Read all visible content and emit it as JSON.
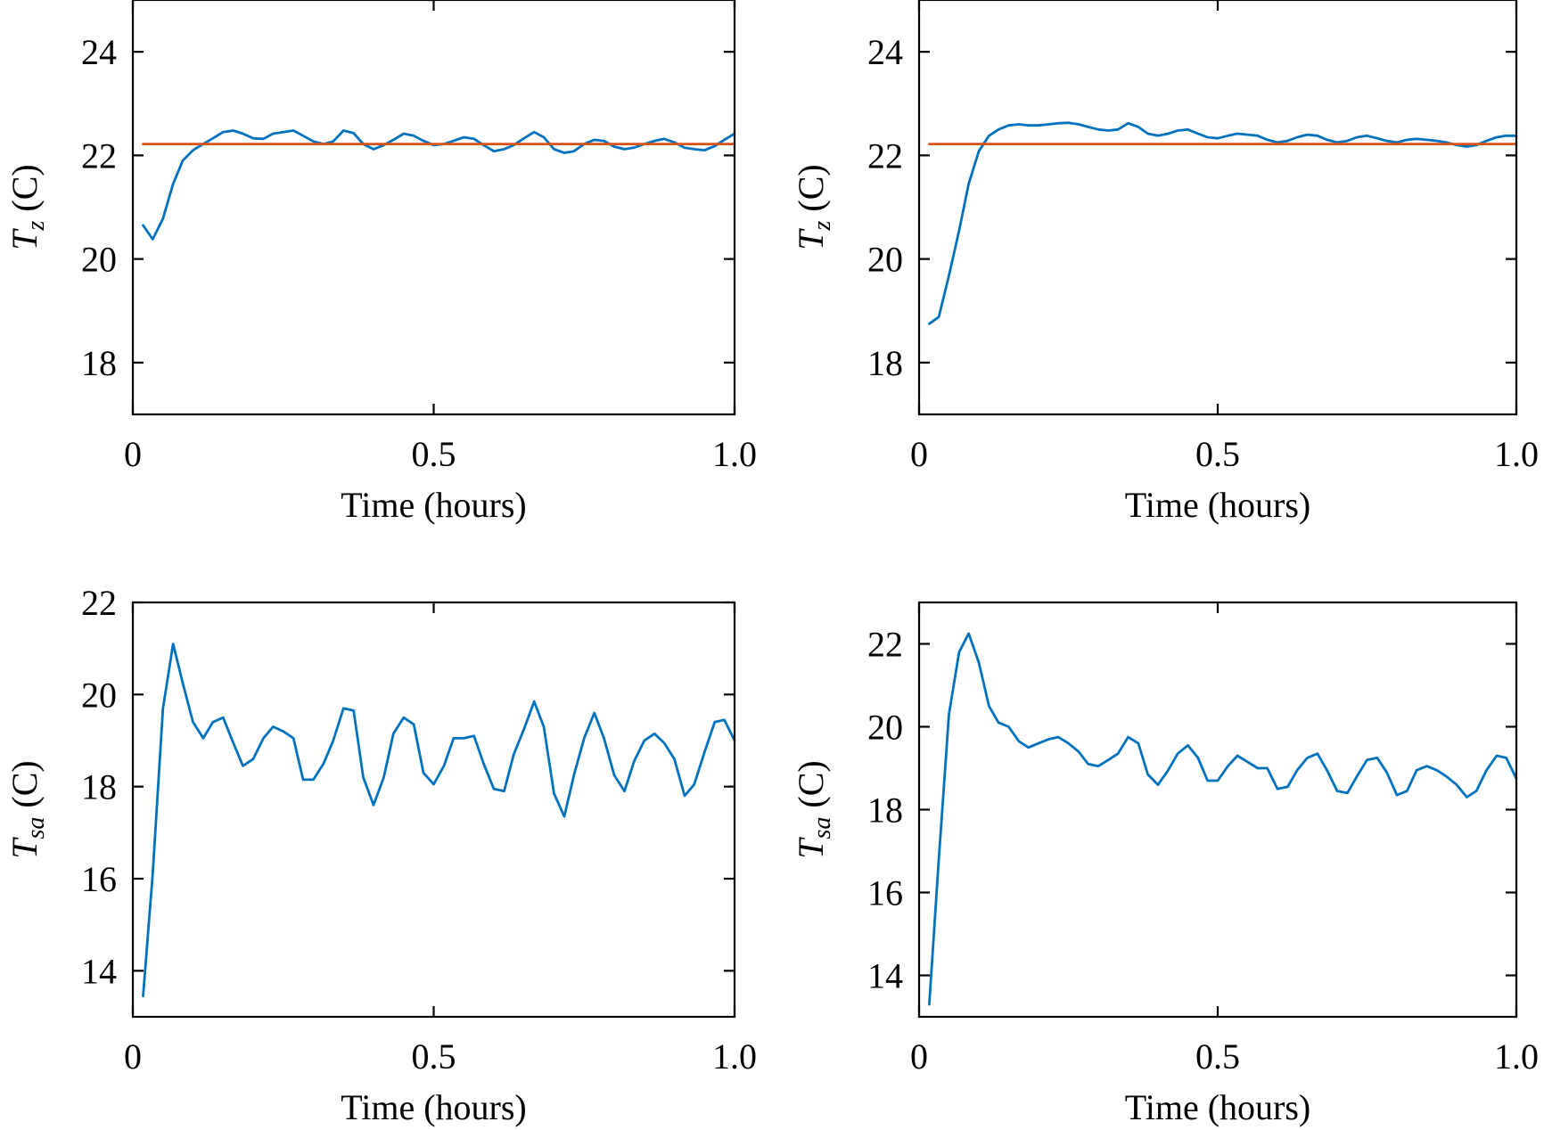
{
  "chart_data": [
    {
      "id": "tz-left",
      "type": "line",
      "ylabel": {
        "main": "T",
        "sub": "z",
        "unit": " (C)"
      },
      "xlabel": "Time (hours)",
      "xlim": [
        0,
        1.0
      ],
      "ylim": [
        17,
        25
      ],
      "xticks": [
        0,
        0.5,
        1.0
      ],
      "xtick_labels": [
        "0",
        "0.5",
        "1.0"
      ],
      "yticks": [
        18,
        20,
        22,
        24
      ],
      "ytick_labels": [
        "18",
        "20",
        "22",
        "24"
      ],
      "series": [
        {
          "color": "#0072BD",
          "x": [
            0.017,
            0.033,
            0.05,
            0.067,
            0.083,
            0.1,
            0.117,
            0.133,
            0.15,
            0.167,
            0.183,
            0.2,
            0.217,
            0.233,
            0.25,
            0.267,
            0.283,
            0.3,
            0.317,
            0.333,
            0.35,
            0.367,
            0.383,
            0.4,
            0.417,
            0.433,
            0.45,
            0.467,
            0.483,
            0.5,
            0.517,
            0.533,
            0.55,
            0.567,
            0.583,
            0.6,
            0.617,
            0.633,
            0.65,
            0.667,
            0.683,
            0.7,
            0.717,
            0.733,
            0.75,
            0.767,
            0.783,
            0.8,
            0.817,
            0.833,
            0.85,
            0.867,
            0.883,
            0.9,
            0.917,
            0.933,
            0.95,
            0.967,
            0.983,
            1.0
          ],
          "y": [
            20.65,
            20.38,
            20.78,
            21.45,
            21.9,
            22.1,
            22.22,
            22.33,
            22.45,
            22.48,
            22.42,
            22.33,
            22.32,
            22.42,
            22.45,
            22.48,
            22.38,
            22.27,
            22.22,
            22.27,
            22.48,
            22.43,
            22.22,
            22.12,
            22.2,
            22.3,
            22.42,
            22.38,
            22.28,
            22.2,
            22.22,
            22.28,
            22.35,
            22.32,
            22.2,
            22.08,
            22.12,
            22.2,
            22.33,
            22.45,
            22.35,
            22.12,
            22.05,
            22.08,
            22.22,
            22.3,
            22.28,
            22.17,
            22.12,
            22.15,
            22.22,
            22.28,
            22.32,
            22.25,
            22.15,
            22.12,
            22.1,
            22.18,
            22.3,
            22.42
          ]
        },
        {
          "color": "#D95319",
          "x": [
            0.017,
            1.0
          ],
          "y": [
            22.22,
            22.22
          ]
        }
      ]
    },
    {
      "id": "tz-right",
      "type": "line",
      "ylabel": {
        "main": "T",
        "sub": "z",
        "unit": " (C)"
      },
      "xlabel": "Time (hours)",
      "xlim": [
        0,
        1.0
      ],
      "ylim": [
        17,
        25
      ],
      "xticks": [
        0,
        0.5,
        1.0
      ],
      "xtick_labels": [
        "0",
        "0.5",
        "1.0"
      ],
      "yticks": [
        18,
        20,
        22,
        24
      ],
      "ytick_labels": [
        "18",
        "20",
        "22",
        "24"
      ],
      "series": [
        {
          "color": "#0072BD",
          "x": [
            0.017,
            0.033,
            0.05,
            0.067,
            0.083,
            0.1,
            0.117,
            0.133,
            0.15,
            0.167,
            0.183,
            0.2,
            0.217,
            0.233,
            0.25,
            0.267,
            0.283,
            0.3,
            0.317,
            0.333,
            0.35,
            0.367,
            0.383,
            0.4,
            0.417,
            0.433,
            0.45,
            0.467,
            0.483,
            0.5,
            0.517,
            0.533,
            0.55,
            0.567,
            0.583,
            0.6,
            0.617,
            0.633,
            0.65,
            0.667,
            0.683,
            0.7,
            0.717,
            0.733,
            0.75,
            0.767,
            0.783,
            0.8,
            0.817,
            0.833,
            0.85,
            0.867,
            0.883,
            0.9,
            0.917,
            0.933,
            0.95,
            0.967,
            0.983,
            1.0
          ],
          "y": [
            18.75,
            18.88,
            19.68,
            20.55,
            21.45,
            22.08,
            22.38,
            22.5,
            22.58,
            22.6,
            22.58,
            22.58,
            22.6,
            22.62,
            22.63,
            22.6,
            22.55,
            22.5,
            22.48,
            22.5,
            22.62,
            22.55,
            22.42,
            22.38,
            22.42,
            22.48,
            22.5,
            22.42,
            22.35,
            22.33,
            22.38,
            22.42,
            22.4,
            22.38,
            22.3,
            22.25,
            22.28,
            22.35,
            22.4,
            22.38,
            22.3,
            22.25,
            22.28,
            22.35,
            22.38,
            22.33,
            22.28,
            22.25,
            22.3,
            22.32,
            22.3,
            22.28,
            22.25,
            22.2,
            22.17,
            22.2,
            22.28,
            22.35,
            22.38,
            22.38
          ]
        },
        {
          "color": "#D95319",
          "x": [
            0.017,
            1.0
          ],
          "y": [
            22.22,
            22.22
          ]
        }
      ]
    },
    {
      "id": "tsa-left",
      "type": "line",
      "ylabel": {
        "main": "T",
        "sub": "sa",
        "unit": " (C)"
      },
      "xlabel": "Time (hours)",
      "xlim": [
        0,
        1.0
      ],
      "ylim": [
        13,
        22
      ],
      "xticks": [
        0,
        0.5,
        1.0
      ],
      "xtick_labels": [
        "0",
        "0.5",
        "1.0"
      ],
      "yticks": [
        14,
        16,
        18,
        20,
        22
      ],
      "ytick_labels": [
        "14",
        "16",
        "18",
        "20",
        "22"
      ],
      "series": [
        {
          "color": "#0072BD",
          "x": [
            0.017,
            0.033,
            0.05,
            0.067,
            0.083,
            0.1,
            0.117,
            0.133,
            0.15,
            0.167,
            0.183,
            0.2,
            0.217,
            0.233,
            0.25,
            0.267,
            0.283,
            0.3,
            0.317,
            0.333,
            0.35,
            0.367,
            0.383,
            0.4,
            0.417,
            0.433,
            0.45,
            0.467,
            0.483,
            0.5,
            0.517,
            0.533,
            0.55,
            0.567,
            0.583,
            0.6,
            0.617,
            0.633,
            0.65,
            0.667,
            0.683,
            0.7,
            0.717,
            0.733,
            0.75,
            0.767,
            0.783,
            0.8,
            0.817,
            0.833,
            0.85,
            0.867,
            0.883,
            0.9,
            0.917,
            0.933,
            0.95,
            0.967,
            0.983,
            1.0
          ],
          "y": [
            13.45,
            16.1,
            19.7,
            21.1,
            20.25,
            19.4,
            19.05,
            19.4,
            19.5,
            18.95,
            18.45,
            18.6,
            19.05,
            19.3,
            19.2,
            19.05,
            18.15,
            18.15,
            18.5,
            19.0,
            19.7,
            19.65,
            18.2,
            17.6,
            18.2,
            19.15,
            19.5,
            19.35,
            18.3,
            18.05,
            18.45,
            19.05,
            19.05,
            19.1,
            18.5,
            17.95,
            17.9,
            18.7,
            19.25,
            19.85,
            19.3,
            17.85,
            17.35,
            18.25,
            19.05,
            19.6,
            19.05,
            18.25,
            17.9,
            18.55,
            19.0,
            19.15,
            18.95,
            18.6,
            17.8,
            18.05,
            18.75,
            19.4,
            19.45,
            19.0
          ]
        }
      ]
    },
    {
      "id": "tsa-right",
      "type": "line",
      "ylabel": {
        "main": "T",
        "sub": "sa",
        "unit": " (C)"
      },
      "xlabel": "Time (hours)",
      "xlim": [
        0,
        1.0
      ],
      "ylim": [
        13,
        23
      ],
      "xticks": [
        0,
        0.5,
        1.0
      ],
      "xtick_labels": [
        "0",
        "0.5",
        "1.0"
      ],
      "yticks": [
        14,
        16,
        18,
        20,
        22
      ],
      "ytick_labels": [
        "14",
        "16",
        "18",
        "20",
        "22"
      ],
      "series": [
        {
          "color": "#0072BD",
          "x": [
            0.017,
            0.033,
            0.05,
            0.067,
            0.083,
            0.1,
            0.117,
            0.133,
            0.15,
            0.167,
            0.183,
            0.2,
            0.217,
            0.233,
            0.25,
            0.267,
            0.283,
            0.3,
            0.317,
            0.333,
            0.35,
            0.367,
            0.383,
            0.4,
            0.417,
            0.433,
            0.45,
            0.467,
            0.483,
            0.5,
            0.517,
            0.533,
            0.55,
            0.567,
            0.583,
            0.6,
            0.617,
            0.633,
            0.65,
            0.667,
            0.683,
            0.7,
            0.717,
            0.733,
            0.75,
            0.767,
            0.783,
            0.8,
            0.817,
            0.833,
            0.85,
            0.867,
            0.883,
            0.9,
            0.917,
            0.933,
            0.95,
            0.967,
            0.983,
            1.0
          ],
          "y": [
            13.3,
            16.8,
            20.3,
            21.8,
            22.25,
            21.55,
            20.5,
            20.1,
            20.0,
            19.65,
            19.5,
            19.6,
            19.7,
            19.75,
            19.6,
            19.4,
            19.1,
            19.05,
            19.2,
            19.35,
            19.75,
            19.6,
            18.85,
            18.6,
            18.95,
            19.35,
            19.55,
            19.25,
            18.7,
            18.7,
            19.05,
            19.3,
            19.15,
            19.0,
            19.0,
            18.5,
            18.55,
            18.95,
            19.25,
            19.35,
            18.95,
            18.45,
            18.4,
            18.8,
            19.2,
            19.25,
            18.9,
            18.35,
            18.45,
            18.95,
            19.05,
            18.95,
            18.8,
            18.6,
            18.3,
            18.45,
            18.95,
            19.3,
            19.25,
            18.75
          ]
        }
      ]
    }
  ]
}
